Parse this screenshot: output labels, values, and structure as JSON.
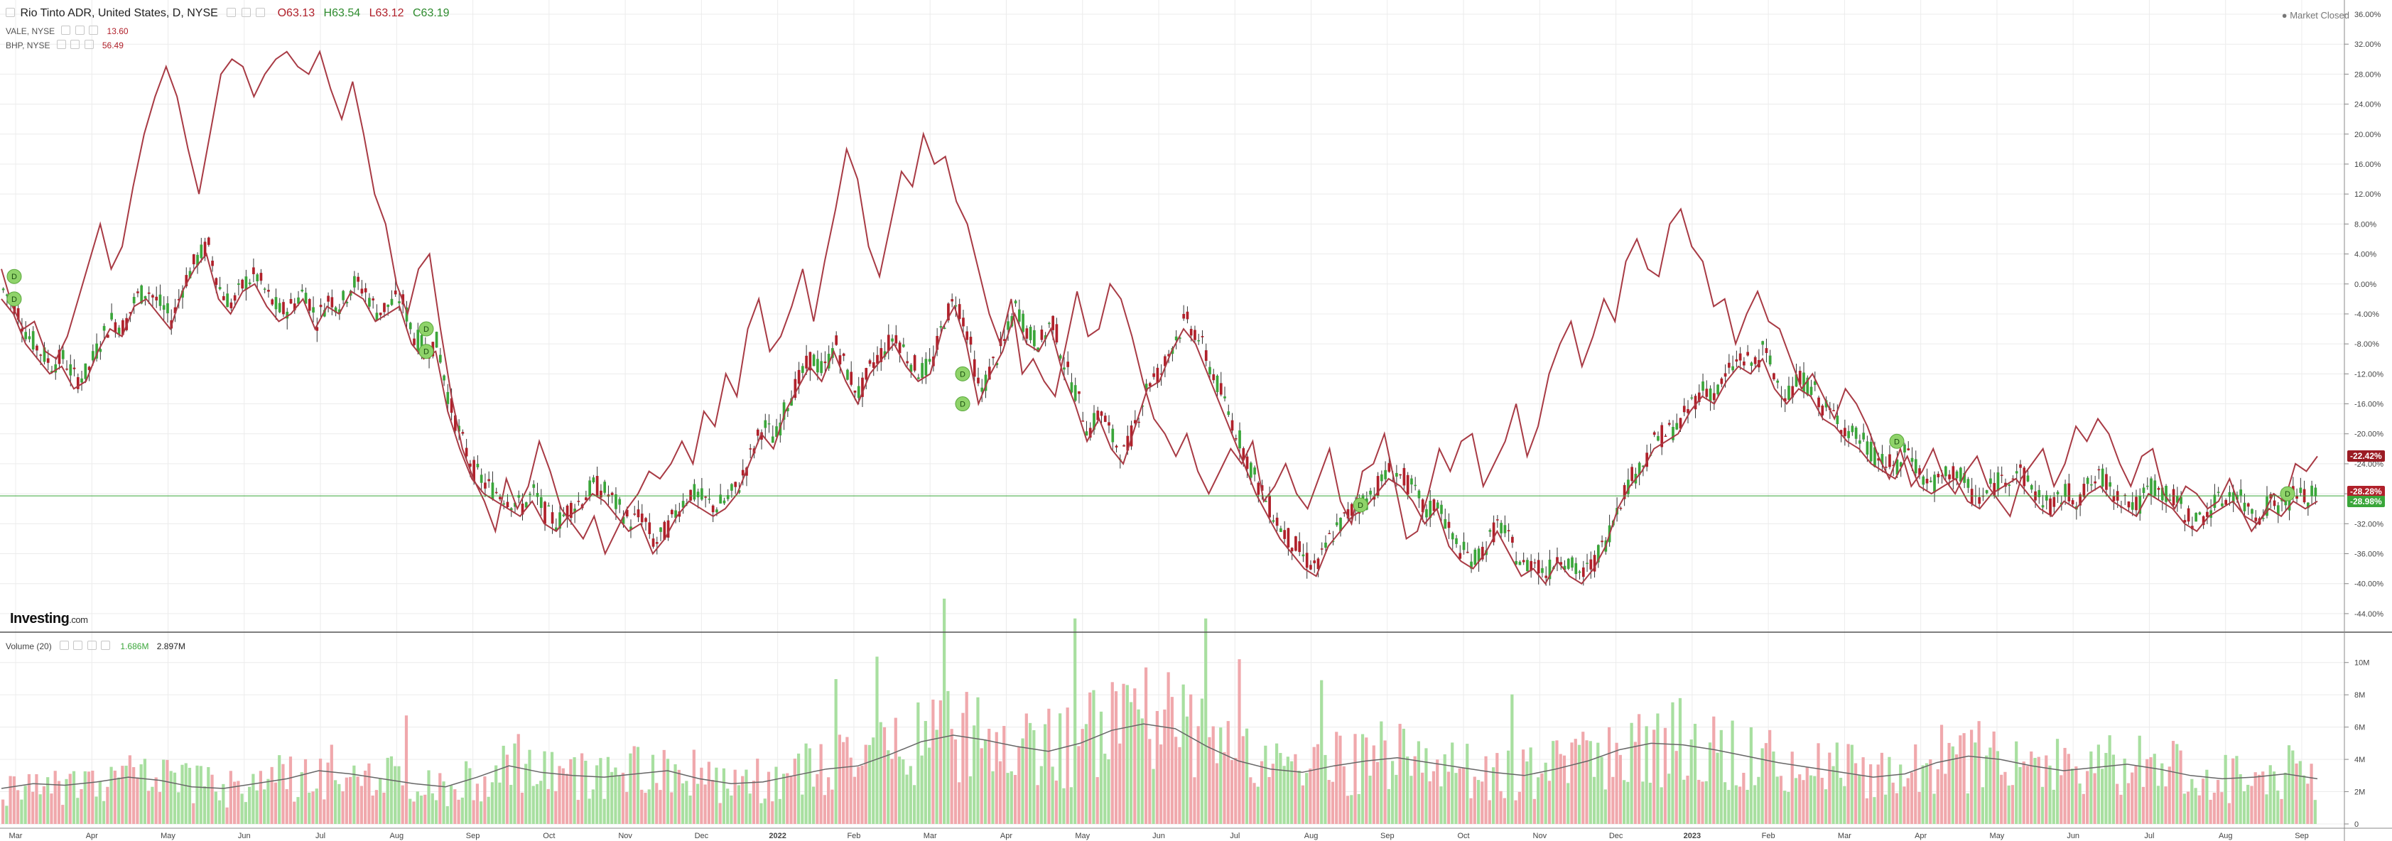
{
  "header": {
    "title": "Rio Tinto ADR, United States, D, NYSE",
    "open": "O63.13",
    "high": "H63.54",
    "low": "L63.12",
    "close": "C63.19",
    "market_status": "Market Closed"
  },
  "comparisons": [
    {
      "label": "VALE, NYSE",
      "value": "13.60"
    },
    {
      "label": "BHP, NYSE",
      "value": "56.49"
    }
  ],
  "volume_header": {
    "label": "Volume (20)",
    "value1": "1.686M",
    "value2": "2.897M"
  },
  "logo": {
    "main": "Investing",
    "suffix": ".com"
  },
  "last_labels": [
    {
      "text": "-22.42%",
      "color": "#9b1c24"
    },
    {
      "text": "-28.28%",
      "color": "#b0202a"
    },
    {
      "text": "-28.98%",
      "color": "#3aa63a"
    }
  ],
  "colors": {
    "up": "#3aa63a",
    "down": "#b0202a",
    "compare_line": "#a83a44",
    "vol_up": "#a8dfa0",
    "vol_down": "#f0a8ac",
    "vol_ma": "#666666",
    "grid": "#ececec"
  },
  "chart_data": {
    "type": "line",
    "price_axis": {
      "unit": "%",
      "ticks": [
        "36.00%",
        "32.00%",
        "28.00%",
        "24.00%",
        "20.00%",
        "16.00%",
        "12.00%",
        "8.00%",
        "4.00%",
        "0.00%",
        "-4.00%",
        "-8.00%",
        "-12.00%",
        "-16.00%",
        "-20.00%",
        "-24.00%",
        "-28.00%",
        "-32.00%",
        "-36.00%",
        "-40.00%",
        "-44.00%"
      ],
      "ylim": [
        -46,
        36
      ],
      "grid": true
    },
    "volume_axis": {
      "ticks": [
        "10M",
        "8M",
        "6M",
        "4M",
        "2M",
        "0"
      ],
      "ylim": [
        0,
        11
      ]
    },
    "x_ticks": [
      "Mar",
      "Apr",
      "May",
      "Jun",
      "Jul",
      "Aug",
      "Sep",
      "Oct",
      "Nov",
      "Dec",
      "2022",
      "Feb",
      "Mar",
      "Apr",
      "May",
      "Jun",
      "Jul",
      "Aug",
      "Sep",
      "Oct",
      "Nov",
      "Dec",
      "2023",
      "Feb",
      "Mar",
      "Apr",
      "May",
      "Jun",
      "Jul",
      "Aug",
      "Sep"
    ],
    "x_range": [
      "2021-03",
      "2023-09"
    ],
    "series": [
      {
        "name": "VALE, NYSE",
        "values": [
          2,
          -3,
          -6,
          -5,
          -9,
          -10,
          -7,
          -2,
          3,
          8,
          2,
          5,
          13,
          20,
          25,
          29,
          25,
          18,
          12,
          20,
          28,
          30,
          29,
          25,
          28,
          30,
          31,
          29,
          28,
          31,
          26,
          22,
          27,
          20,
          12,
          8,
          0,
          -4,
          2,
          4,
          -6,
          -15,
          -22,
          -26,
          -29,
          -33,
          -26,
          -30,
          -27,
          -21,
          -25,
          -30,
          -32,
          -34,
          -31,
          -36,
          -33,
          -30,
          -28,
          -25,
          -26,
          -24,
          -21,
          -24,
          -17,
          -19,
          -12,
          -15,
          -6,
          -2,
          -9,
          -7,
          -3,
          2,
          -5,
          3,
          10,
          18,
          14,
          5,
          1,
          8,
          15,
          13,
          20,
          16,
          17,
          11,
          8,
          2,
          -4,
          -8,
          -2,
          -12,
          -10,
          -13,
          -15,
          -8,
          -1,
          -7,
          -6,
          0,
          -2,
          -7,
          -13,
          -18,
          -20,
          -23,
          -20,
          -25,
          -28,
          -25,
          -22,
          -24,
          -21,
          -29,
          -27,
          -24,
          -28,
          -30,
          -26,
          -22,
          -29,
          -32,
          -25,
          -24,
          -20,
          -27,
          -34,
          -33,
          -28,
          -22,
          -25,
          -21,
          -20,
          -27,
          -24,
          -21,
          -16,
          -23,
          -19,
          -12,
          -8,
          -5,
          -11,
          -7,
          -2,
          -5,
          3,
          6,
          2,
          1,
          8,
          10,
          5,
          3,
          -3,
          -2,
          -8,
          -4,
          -1,
          -5,
          -6,
          -10,
          -14,
          -12,
          -15,
          -18,
          -14,
          -16,
          -19,
          -23,
          -26,
          -22,
          -27,
          -25,
          -22,
          -26,
          -28,
          -25,
          -23,
          -27,
          -29,
          -31,
          -26,
          -24,
          -22,
          -27,
          -24,
          -19,
          -21,
          -18,
          -20,
          -24,
          -27,
          -23,
          -22,
          -28,
          -30,
          -27,
          -28,
          -30,
          -29,
          -26,
          -30,
          -33,
          -31,
          -28,
          -29,
          -24,
          -25,
          -23
        ]
      },
      {
        "name": "BHP, NYSE",
        "values": [
          -2,
          -4,
          -8,
          -10,
          -12,
          -11,
          -14,
          -13,
          -9,
          -6,
          -7,
          -3,
          -2,
          -4,
          -6,
          -1,
          2,
          4,
          -2,
          -4,
          -1,
          0,
          -3,
          -5,
          -4,
          -2,
          -6,
          -3,
          -4,
          -1,
          -2,
          -5,
          -4,
          -3,
          -8,
          -10,
          -9,
          -17,
          -22,
          -26,
          -28,
          -29,
          -30,
          -31,
          -29,
          -32,
          -33,
          -31,
          -30,
          -28,
          -29,
          -31,
          -33,
          -32,
          -36,
          -34,
          -31,
          -29,
          -30,
          -31,
          -30,
          -28,
          -24,
          -20,
          -22,
          -17,
          -14,
          -11,
          -13,
          -9,
          -13,
          -16,
          -12,
          -10,
          -8,
          -11,
          -13,
          -12,
          -6,
          -3,
          -8,
          -16,
          -12,
          -9,
          -4,
          -8,
          -9,
          -6,
          -12,
          -16,
          -21,
          -18,
          -22,
          -24,
          -19,
          -14,
          -13,
          -9,
          -6,
          -8,
          -12,
          -16,
          -20,
          -24,
          -28,
          -31,
          -34,
          -36,
          -38,
          -39,
          -35,
          -33,
          -31,
          -30,
          -28,
          -26,
          -27,
          -29,
          -32,
          -30,
          -35,
          -37,
          -38,
          -36,
          -33,
          -36,
          -39,
          -38,
          -40,
          -37,
          -39,
          -40,
          -38,
          -35,
          -30,
          -27,
          -25,
          -22,
          -21,
          -20,
          -17,
          -15,
          -16,
          -13,
          -11,
          -12,
          -10,
          -14,
          -16,
          -14,
          -15,
          -18,
          -19,
          -21,
          -22,
          -24,
          -25,
          -26,
          -23,
          -27,
          -28,
          -27,
          -26,
          -29,
          -30,
          -28,
          -27,
          -26,
          -28,
          -30,
          -31,
          -29,
          -30,
          -28,
          -27,
          -29,
          -30,
          -31,
          -28,
          -29,
          -30,
          -32,
          -33,
          -31,
          -30,
          -29,
          -31,
          -32,
          -30,
          -31,
          -29,
          -30,
          -29
        ]
      }
    ],
    "candles_last_pct": -28.28,
    "volume_ma_approx": [
      2.2,
      2.5,
      2.4,
      2.6,
      2.9,
      2.7,
      2.3,
      2.2,
      2.5,
      2.8,
      3.3,
      3.1,
      2.8,
      2.5,
      2.3,
      2.9,
      3.6,
      3.2,
      3.0,
      2.9,
      3.1,
      3.3,
      2.8,
      2.5,
      2.6,
      3.0,
      3.4,
      3.6,
      4.3,
      5.1,
      5.5,
      5.2,
      4.8,
      4.5,
      5.0,
      5.8,
      6.2,
      5.9,
      4.8,
      3.9,
      3.4,
      3.2,
      3.6,
      3.9,
      4.1,
      3.8,
      3.5,
      3.2,
      3.0,
      3.4,
      3.9,
      4.6,
      5.0,
      4.9,
      4.6,
      4.2,
      3.8,
      3.5,
      3.2,
      2.9,
      3.1,
      3.8,
      4.2,
      4.0,
      3.6,
      3.3,
      3.5,
      3.7,
      3.4,
      3.0,
      2.8,
      2.9,
      3.1,
      2.8
    ]
  }
}
